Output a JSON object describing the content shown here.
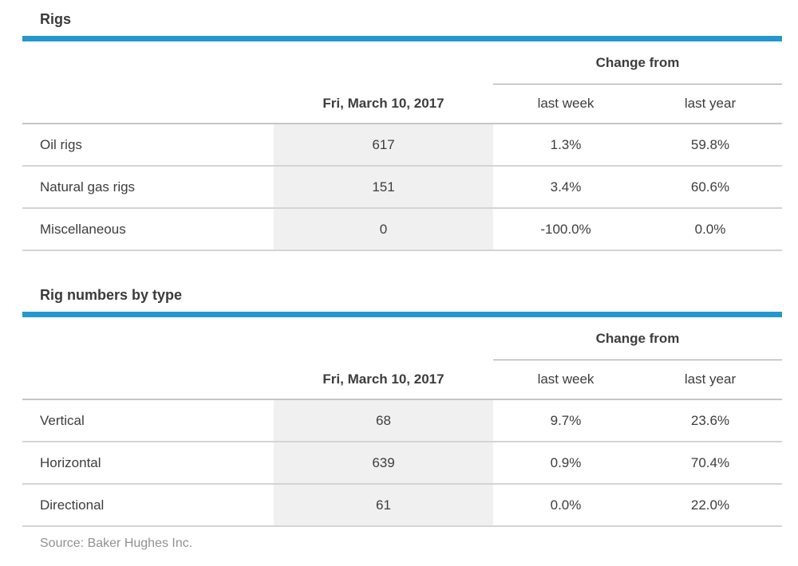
{
  "accent_color": "#2397ce",
  "tables": [
    {
      "title": "Rigs",
      "change_from_label": "Change from",
      "date_header": "Fri, March 10, 2017",
      "sub_headers": [
        "last week",
        "last year"
      ],
      "rows": [
        {
          "label": "Oil rigs",
          "value": "617",
          "last_week": "1.3%",
          "last_year": "59.8%"
        },
        {
          "label": "Natural gas rigs",
          "value": "151",
          "last_week": "3.4%",
          "last_year": "60.6%"
        },
        {
          "label": "Miscellaneous",
          "value": "0",
          "last_week": "-100.0%",
          "last_year": "0.0%"
        }
      ]
    },
    {
      "title": "Rig numbers by type",
      "change_from_label": "Change from",
      "date_header": "Fri, March 10, 2017",
      "sub_headers": [
        "last week",
        "last year"
      ],
      "rows": [
        {
          "label": "Vertical",
          "value": "68",
          "last_week": "9.7%",
          "last_year": "23.6%"
        },
        {
          "label": "Horizontal",
          "value": "639",
          "last_week": "0.9%",
          "last_year": "70.4%"
        },
        {
          "label": "Directional",
          "value": "61",
          "last_week": "0.0%",
          "last_year": "22.0%"
        }
      ]
    }
  ],
  "source": "Source: Baker Hughes Inc.",
  "chart_data": [
    {
      "type": "table",
      "title": "Rigs",
      "columns": [
        "",
        "Fri, March 10, 2017",
        "Change from last week",
        "Change from last year"
      ],
      "rows": [
        [
          "Oil rigs",
          617,
          "1.3%",
          "59.8%"
        ],
        [
          "Natural gas rigs",
          151,
          "3.4%",
          "60.6%"
        ],
        [
          "Miscellaneous",
          0,
          "-100.0%",
          "0.0%"
        ]
      ]
    },
    {
      "type": "table",
      "title": "Rig numbers by type",
      "columns": [
        "",
        "Fri, March 10, 2017",
        "Change from last week",
        "Change from last year"
      ],
      "rows": [
        [
          "Vertical",
          68,
          "9.7%",
          "23.6%"
        ],
        [
          "Horizontal",
          639,
          "0.9%",
          "70.4%"
        ],
        [
          "Directional",
          61,
          "0.0%",
          "22.0%"
        ]
      ]
    }
  ]
}
